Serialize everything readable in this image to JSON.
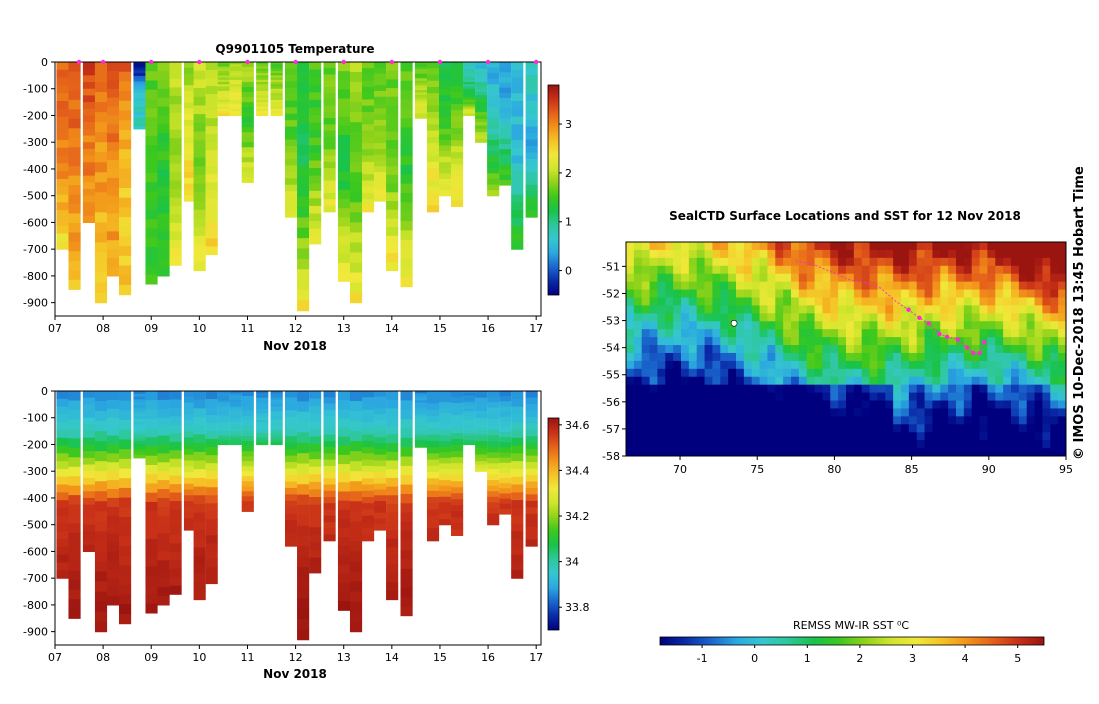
{
  "colors": {
    "cmap": [
      "#00007f",
      "#0a2ba8",
      "#1a66cc",
      "#2ba8e0",
      "#35c7cf",
      "#2fc79b",
      "#19c34a",
      "#3cc81e",
      "#8ed21a",
      "#cfe52b",
      "#f0e83a",
      "#f5c326",
      "#f2931a",
      "#e4601a",
      "#c83018",
      "#9a1410"
    ],
    "marker": "#ff2ad4"
  },
  "credit": "© IMOS 10-Dec-2018 13:45 Hobart Time",
  "chart_data": [
    {
      "id": "temperature",
      "type": "heatmap",
      "title": "Q9901105  Temperature",
      "xlabel": "Nov 2018",
      "ylabel": "",
      "x_tick_labels": [
        "07",
        "08",
        "09",
        "10",
        "11",
        "12",
        "13",
        "14",
        "15",
        "16",
        "17"
      ],
      "x_ticks": [
        7,
        8,
        9,
        10,
        11,
        12,
        13,
        14,
        15,
        16,
        17
      ],
      "xlim": [
        7,
        17.1
      ],
      "y_tick_labels": [
        "0",
        "-100",
        "-200",
        "-300",
        "-400",
        "-500",
        "-600",
        "-700",
        "-800",
        "-900"
      ],
      "y_ticks": [
        0,
        -100,
        -200,
        -300,
        -400,
        -500,
        -600,
        -700,
        -800,
        -900
      ],
      "ylim": [
        -950,
        0
      ],
      "colorbar": {
        "ticks": [
          0,
          1,
          2,
          3
        ],
        "tick_labels": [
          "0",
          "1",
          "2",
          "3"
        ],
        "range": [
          -0.5,
          3.8
        ]
      },
      "profile_marker_days": [
        7.5,
        8.0,
        9.0,
        10.0,
        11.0,
        12.0,
        13.0,
        14.0,
        15.0,
        16.0,
        17.0
      ],
      "profiles": [
        {
          "t": 7.15,
          "depth": 700,
          "surf": 3.2,
          "mid": 3.1,
          "deep": 2.4
        },
        {
          "t": 7.4,
          "depth": 850,
          "surf": 3.3,
          "mid": 3.0,
          "deep": 2.7
        },
        {
          "t": 7.7,
          "depth": 600,
          "surf": 3.4,
          "mid": 3.1,
          "deep": 2.9
        },
        {
          "t": 7.95,
          "depth": 900,
          "surf": 3.1,
          "mid": 2.9,
          "deep": 2.4
        },
        {
          "t": 8.2,
          "depth": 800,
          "surf": 3.3,
          "mid": 3.0,
          "deep": 2.8
        },
        {
          "t": 8.45,
          "depth": 870,
          "surf": 3.2,
          "mid": 2.6,
          "deep": 2.6
        },
        {
          "t": 8.75,
          "depth": 250,
          "surf": -0.5,
          "mid": 0.6,
          "deep": 0.8
        },
        {
          "t": 9.0,
          "depth": 830,
          "surf": 1.6,
          "mid": 1.5,
          "deep": 1.4
        },
        {
          "t": 9.25,
          "depth": 800,
          "surf": 1.9,
          "mid": 1.3,
          "deep": 1.5
        },
        {
          "t": 9.5,
          "depth": 760,
          "surf": 2.0,
          "mid": 1.8,
          "deep": 2.3
        },
        {
          "t": 9.8,
          "depth": 520,
          "surf": 1.8,
          "mid": 2.3,
          "deep": 2.5
        },
        {
          "t": 10.0,
          "depth": 780,
          "surf": 2.1,
          "mid": 1.6,
          "deep": 2.4
        },
        {
          "t": 10.25,
          "depth": 720,
          "surf": 1.9,
          "mid": 2.1,
          "deep": 2.5
        },
        {
          "t": 10.5,
          "depth": 200,
          "surf": 1.7,
          "mid": 2.0,
          "deep": 2.4
        },
        {
          "t": 10.75,
          "depth": 200,
          "surf": 1.8,
          "mid": 2.2,
          "deep": 2.4
        },
        {
          "t": 11.0,
          "depth": 450,
          "surf": 1.9,
          "mid": 1.4,
          "deep": 2.3
        },
        {
          "t": 11.3,
          "depth": 200,
          "surf": 1.7,
          "mid": 1.9,
          "deep": 2.3
        },
        {
          "t": 11.6,
          "depth": 200,
          "surf": 1.6,
          "mid": 1.9,
          "deep": 2.3
        },
        {
          "t": 11.9,
          "depth": 580,
          "surf": 1.5,
          "mid": 1.6,
          "deep": 2.2
        },
        {
          "t": 12.15,
          "depth": 930,
          "surf": 1.4,
          "mid": 1.2,
          "deep": 2.4
        },
        {
          "t": 12.4,
          "depth": 680,
          "surf": 1.5,
          "mid": 1.5,
          "deep": 2.3
        },
        {
          "t": 12.7,
          "depth": 560,
          "surf": 1.7,
          "mid": 1.6,
          "deep": 2.3
        },
        {
          "t": 13.0,
          "depth": 820,
          "surf": 1.8,
          "mid": 1.2,
          "deep": 2.4
        },
        {
          "t": 13.25,
          "depth": 900,
          "surf": 1.9,
          "mid": 1.5,
          "deep": 2.4
        },
        {
          "t": 13.5,
          "depth": 560,
          "surf": 1.6,
          "mid": 1.7,
          "deep": 2.3
        },
        {
          "t": 13.75,
          "depth": 520,
          "surf": 1.7,
          "mid": 1.8,
          "deep": 2.3
        },
        {
          "t": 14.0,
          "depth": 780,
          "surf": 1.7,
          "mid": 1.6,
          "deep": 2.4
        },
        {
          "t": 14.3,
          "depth": 840,
          "surf": 1.6,
          "mid": 1.4,
          "deep": 2.4
        },
        {
          "t": 14.6,
          "depth": 210,
          "surf": 1.5,
          "mid": 1.9,
          "deep": 2.2
        },
        {
          "t": 14.85,
          "depth": 560,
          "surf": 1.6,
          "mid": 2.1,
          "deep": 2.5
        },
        {
          "t": 15.1,
          "depth": 500,
          "surf": 1.3,
          "mid": 1.5,
          "deep": 2.4
        },
        {
          "t": 15.35,
          "depth": 540,
          "surf": 1.2,
          "mid": 1.8,
          "deep": 2.4
        },
        {
          "t": 15.6,
          "depth": 200,
          "surf": 0.7,
          "mid": 1.1,
          "deep": 2.2
        },
        {
          "t": 15.85,
          "depth": 300,
          "surf": 0.5,
          "mid": 1.3,
          "deep": 2.0
        },
        {
          "t": 16.1,
          "depth": 500,
          "surf": 0.4,
          "mid": 0.8,
          "deep": 1.8
        },
        {
          "t": 16.35,
          "depth": 460,
          "surf": 0.3,
          "mid": 0.6,
          "deep": 1.6
        },
        {
          "t": 16.6,
          "depth": 700,
          "surf": 0.6,
          "mid": 0.5,
          "deep": 1.5
        },
        {
          "t": 16.9,
          "depth": 580,
          "surf": 0.8,
          "mid": 0.4,
          "deep": 1.4
        }
      ]
    },
    {
      "id": "salinity",
      "type": "heatmap",
      "title": "",
      "xlabel": "Nov 2018",
      "ylabel": "",
      "x_tick_labels": [
        "07",
        "08",
        "09",
        "10",
        "11",
        "12",
        "13",
        "14",
        "15",
        "16",
        "17"
      ],
      "x_ticks": [
        7,
        8,
        9,
        10,
        11,
        12,
        13,
        14,
        15,
        16,
        17
      ],
      "xlim": [
        7,
        17.1
      ],
      "y_tick_labels": [
        "0",
        "-100",
        "-200",
        "-300",
        "-400",
        "-500",
        "-600",
        "-700",
        "-800",
        "-900"
      ],
      "y_ticks": [
        0,
        -100,
        -200,
        -300,
        -400,
        -500,
        -600,
        -700,
        -800,
        -900
      ],
      "ylim": [
        -950,
        0
      ],
      "colorbar": {
        "ticks": [
          33.8,
          34.0,
          34.2,
          34.4,
          34.6
        ],
        "tick_labels": [
          "33.8",
          "34",
          "34.2",
          "34.4",
          "34.6"
        ],
        "range": [
          33.7,
          34.63
        ]
      },
      "layers": {
        "surface": 33.85,
        "halocline_top": 150,
        "halocline_bottom": 420,
        "deep": 34.62
      }
    },
    {
      "id": "sst-map",
      "type": "heatmap",
      "title": "SealCTD Surface Locations and SST for 12 Nov 2018",
      "xlabel": "",
      "ylabel": "",
      "x_tick_labels": [
        "70",
        "75",
        "80",
        "85",
        "90",
        "95"
      ],
      "x_ticks": [
        70,
        75,
        80,
        85,
        90,
        95
      ],
      "xlim": [
        66.5,
        95
      ],
      "y_tick_labels": [
        "-51",
        "-52",
        "-53",
        "-54",
        "-55",
        "-56",
        "-57",
        "-58"
      ],
      "y_ticks": [
        -51,
        -52,
        -53,
        -54,
        -55,
        -56,
        -57,
        -58
      ],
      "ylim": [
        -58,
        -50.1
      ],
      "colorbar": {
        "label": "REMSS MW-IR SST ⁰C",
        "ticks": [
          -1,
          0,
          1,
          2,
          3,
          4,
          5
        ],
        "tick_labels": [
          "-1",
          "0",
          "1",
          "2",
          "3",
          "4",
          "5"
        ],
        "range": [
          -1.8,
          5.5
        ]
      },
      "track": [
        {
          "lon": 77.5,
          "lat": -50.8
        },
        {
          "lon": 78.5,
          "lat": -50.9
        },
        {
          "lon": 79.8,
          "lat": -51.2
        },
        {
          "lon": 81.0,
          "lat": -51.5
        },
        {
          "lon": 82.0,
          "lat": -51.6
        },
        {
          "lon": 83.0,
          "lat": -51.8
        },
        {
          "lon": 84.0,
          "lat": -52.3
        },
        {
          "lon": 84.8,
          "lat": -52.6
        },
        {
          "lon": 85.5,
          "lat": -52.9
        },
        {
          "lon": 86.1,
          "lat": -53.1
        },
        {
          "lon": 86.8,
          "lat": -53.5
        },
        {
          "lon": 87.3,
          "lat": -53.6
        },
        {
          "lon": 88.0,
          "lat": -53.7
        },
        {
          "lon": 88.6,
          "lat": -54.0
        },
        {
          "lon": 89.0,
          "lat": -54.2
        },
        {
          "lon": 89.4,
          "lat": -54.2
        },
        {
          "lon": 89.7,
          "lat": -53.8
        }
      ],
      "island": {
        "lon": 73.5,
        "lat": -53.1
      }
    }
  ]
}
